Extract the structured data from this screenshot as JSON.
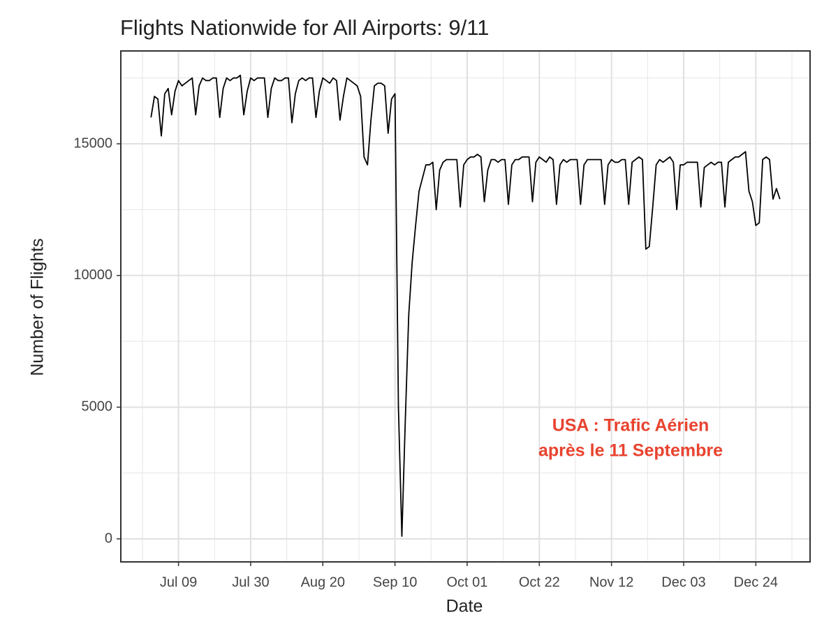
{
  "chart_data": {
    "type": "line",
    "title": "Flights Nationwide for All Airports: 9/11",
    "x_label": "Date",
    "y_label": "Number of Flights",
    "annotation": [
      "USA : Trafic Aérien",
      "après le 11 Septembre"
    ],
    "annotation_color": "#e8432f",
    "color": "#000000",
    "grid": true,
    "categories": [
      "Jul 01",
      "Jul 02",
      "Jul 03",
      "Jul 04",
      "Jul 05",
      "Jul 06",
      "Jul 07",
      "Jul 08",
      "Jul 09",
      "Jul 10",
      "Jul 11",
      "Jul 12",
      "Jul 13",
      "Jul 14",
      "Jul 15",
      "Jul 16",
      "Jul 17",
      "Jul 18",
      "Jul 19",
      "Jul 20",
      "Jul 21",
      "Jul 22",
      "Jul 23",
      "Jul 24",
      "Jul 25",
      "Jul 26",
      "Jul 27",
      "Jul 28",
      "Jul 29",
      "Jul 30",
      "Jul 31",
      "Aug 01",
      "Aug 02",
      "Aug 03",
      "Aug 04",
      "Aug 05",
      "Aug 06",
      "Aug 07",
      "Aug 08",
      "Aug 09",
      "Aug 10",
      "Aug 11",
      "Aug 12",
      "Aug 13",
      "Aug 14",
      "Aug 15",
      "Aug 16",
      "Aug 17",
      "Aug 18",
      "Aug 19",
      "Aug 20",
      "Aug 21",
      "Aug 22",
      "Aug 23",
      "Aug 24",
      "Aug 25",
      "Aug 26",
      "Aug 27",
      "Aug 28",
      "Aug 29",
      "Aug 30",
      "Aug 31",
      "Sep 01",
      "Sep 02",
      "Sep 03",
      "Sep 04",
      "Sep 05",
      "Sep 06",
      "Sep 07",
      "Sep 08",
      "Sep 09",
      "Sep 10",
      "Sep 11",
      "Sep 12",
      "Sep 13",
      "Sep 14",
      "Sep 15",
      "Sep 16",
      "Sep 17",
      "Sep 18",
      "Sep 19",
      "Sep 20",
      "Sep 21",
      "Sep 22",
      "Sep 23",
      "Sep 24",
      "Sep 25",
      "Sep 26",
      "Sep 27",
      "Sep 28",
      "Sep 29",
      "Sep 30",
      "Oct 01",
      "Oct 02",
      "Oct 03",
      "Oct 04",
      "Oct 05",
      "Oct 06",
      "Oct 07",
      "Oct 08",
      "Oct 09",
      "Oct 10",
      "Oct 11",
      "Oct 12",
      "Oct 13",
      "Oct 14",
      "Oct 15",
      "Oct 16",
      "Oct 17",
      "Oct 18",
      "Oct 19",
      "Oct 20",
      "Oct 21",
      "Oct 22",
      "Oct 23",
      "Oct 24",
      "Oct 25",
      "Oct 26",
      "Oct 27",
      "Oct 28",
      "Oct 29",
      "Oct 30",
      "Oct 31",
      "Nov 01",
      "Nov 02",
      "Nov 03",
      "Nov 04",
      "Nov 05",
      "Nov 06",
      "Nov 07",
      "Nov 08",
      "Nov 09",
      "Nov 10",
      "Nov 11",
      "Nov 12",
      "Nov 13",
      "Nov 14",
      "Nov 15",
      "Nov 16",
      "Nov 17",
      "Nov 18",
      "Nov 19",
      "Nov 20",
      "Nov 21",
      "Nov 22",
      "Nov 23",
      "Nov 24",
      "Nov 25",
      "Nov 26",
      "Nov 27",
      "Nov 28",
      "Nov 29",
      "Nov 30",
      "Dec 01",
      "Dec 02",
      "Dec 03",
      "Dec 04",
      "Dec 05",
      "Dec 06",
      "Dec 07",
      "Dec 08",
      "Dec 09",
      "Dec 10",
      "Dec 11",
      "Dec 12",
      "Dec 13",
      "Dec 14",
      "Dec 15",
      "Dec 16",
      "Dec 17",
      "Dec 18",
      "Dec 19",
      "Dec 20",
      "Dec 21",
      "Dec 22",
      "Dec 23",
      "Dec 24",
      "Dec 25",
      "Dec 26",
      "Dec 27",
      "Dec 28",
      "Dec 29",
      "Dec 30",
      "Dec 31"
    ],
    "values": [
      16000,
      16800,
      16700,
      15300,
      16900,
      17100,
      16100,
      17000,
      17400,
      17200,
      17300,
      17400,
      17500,
      16100,
      17200,
      17500,
      17400,
      17400,
      17500,
      17500,
      16000,
      17100,
      17500,
      17400,
      17500,
      17500,
      17600,
      16100,
      17000,
      17500,
      17400,
      17500,
      17500,
      17500,
      16000,
      17100,
      17500,
      17400,
      17400,
      17500,
      17500,
      15800,
      16900,
      17400,
      17500,
      17400,
      17500,
      17500,
      16000,
      17000,
      17500,
      17400,
      17300,
      17500,
      17400,
      15900,
      16800,
      17500,
      17400,
      17300,
      17200,
      16800,
      14500,
      14200,
      15900,
      17200,
      17300,
      17300,
      17200,
      15400,
      16700,
      16900,
      5000,
      100,
      4500,
      8500,
      10500,
      11900,
      13200,
      13700,
      14200,
      14200,
      14300,
      12500,
      14000,
      14300,
      14400,
      14400,
      14400,
      14400,
      12600,
      14200,
      14400,
      14500,
      14500,
      14600,
      14500,
      12800,
      14000,
      14400,
      14400,
      14300,
      14400,
      14400,
      12700,
      14200,
      14400,
      14400,
      14500,
      14500,
      14500,
      12800,
      14300,
      14500,
      14400,
      14300,
      14500,
      14400,
      12700,
      14200,
      14400,
      14300,
      14400,
      14400,
      14400,
      12700,
      14200,
      14400,
      14400,
      14400,
      14400,
      14400,
      12700,
      14200,
      14400,
      14300,
      14300,
      14400,
      14400,
      12700,
      14300,
      14400,
      14500,
      14400,
      11000,
      11100,
      12600,
      14200,
      14400,
      14300,
      14400,
      14500,
      14300,
      12500,
      14200,
      14200,
      14300,
      14300,
      14300,
      14300,
      12600,
      14100,
      14200,
      14300,
      14200,
      14300,
      14300,
      12600,
      14300,
      14400,
      14500,
      14500,
      14600,
      14700,
      13200,
      12800,
      11900,
      12000,
      14400,
      14500,
      14400,
      12900,
      13300,
      12900
    ],
    "xticks": [
      "Jul 09",
      "Jul 30",
      "Aug 20",
      "Sep 10",
      "Oct 01",
      "Oct 22",
      "Nov 12",
      "Dec 03",
      "Dec 24"
    ],
    "ylim": [
      -875,
      18525
    ],
    "yticks": [
      0,
      5000,
      10000,
      15000
    ]
  }
}
